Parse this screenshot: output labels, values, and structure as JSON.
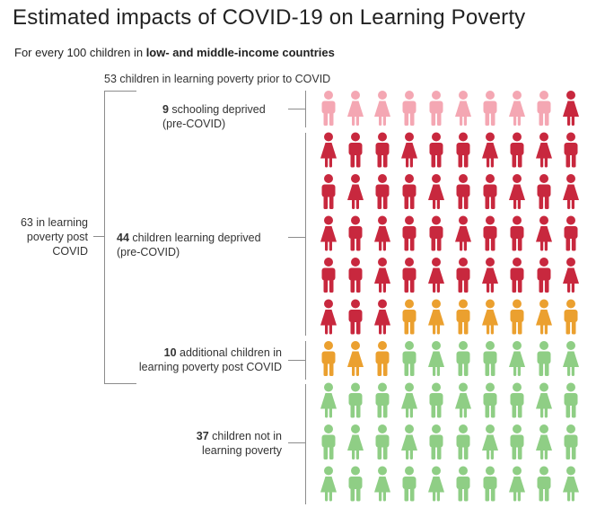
{
  "header": {
    "title": "Estimated impacts of COVID-19 on Learning Poverty",
    "subtitle_prefix": "For every 100 children in ",
    "subtitle_bold": "low- and middle-income countries"
  },
  "labels": {
    "prior": "53 children in learning poverty prior to COVID",
    "total_line1": "63 in learning",
    "total_line2": "poverty post",
    "total_line3": "COVID",
    "schooling_num": "9",
    "schooling_text1": " schooling deprived",
    "schooling_text2": "(pre-COVID)",
    "learning_num": "44",
    "learning_text1": " children learning deprived",
    "learning_text2": "(pre-COVID)",
    "additional_num": "10",
    "additional_text1": " additional children in",
    "additional_text2": "learning poverty post COVID",
    "not_num": "37",
    "not_text1": " children not in",
    "not_text2": "learning poverty"
  },
  "chart_data": {
    "type": "pictogram",
    "total": 100,
    "columns": 10,
    "rows": 10,
    "categories": [
      {
        "name": "schooling deprived (pre-COVID)",
        "count": 9,
        "color": "#f4a7b3"
      },
      {
        "name": "children learning deprived (pre-COVID)",
        "count": 44,
        "color": "#c8283e"
      },
      {
        "name": "additional children in learning poverty post COVID",
        "count": 10,
        "color": "#eba02f"
      },
      {
        "name": "children not in learning poverty",
        "count": 37,
        "color": "#8fce85"
      }
    ],
    "gender_pattern": [
      [
        "m",
        "f",
        "f",
        "m",
        "m",
        "f",
        "m",
        "f",
        "m",
        "f"
      ],
      [
        "f",
        "m",
        "m",
        "f",
        "m",
        "m",
        "f",
        "m",
        "f",
        "m"
      ],
      [
        "m",
        "f",
        "m",
        "m",
        "f",
        "m",
        "m",
        "f",
        "m",
        "f"
      ],
      [
        "f",
        "m",
        "f",
        "m",
        "m",
        "f",
        "m",
        "m",
        "f",
        "m"
      ],
      [
        "m",
        "m",
        "f",
        "m",
        "f",
        "m",
        "f",
        "m",
        "m",
        "f"
      ],
      [
        "f",
        "m",
        "f",
        "m",
        "f",
        "m",
        "f",
        "m",
        "f",
        "m"
      ],
      [
        "m",
        "f",
        "m",
        "m",
        "f",
        "m",
        "m",
        "f",
        "m",
        "f"
      ],
      [
        "f",
        "m",
        "m",
        "f",
        "m",
        "f",
        "m",
        "m",
        "f",
        "m"
      ],
      [
        "m",
        "f",
        "m",
        "f",
        "m",
        "m",
        "f",
        "m",
        "f",
        "m"
      ],
      [
        "f",
        "m",
        "f",
        "m",
        "f",
        "m",
        "m",
        "f",
        "m",
        "f"
      ]
    ]
  }
}
